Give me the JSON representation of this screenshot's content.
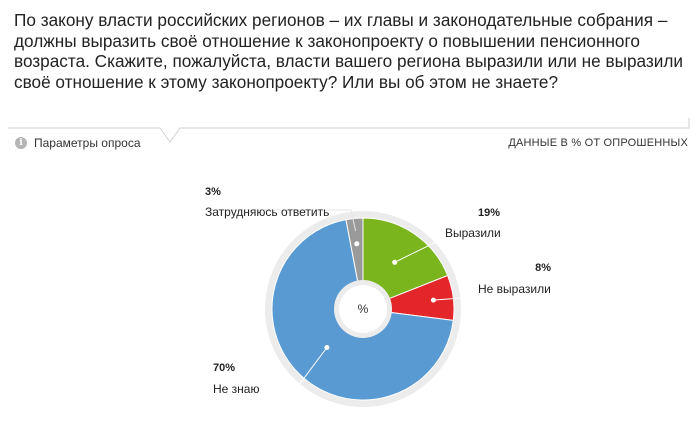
{
  "question": "По закону власти российских регионов – их главы и законодательные собрания – должны выразить своё отношение к законопроекту о повышении пенсионного возраста. Скажите, пожалуйста, власти вашего региона выразили или не выразили своё отношение к этому законопроекту? Или вы об этом не знаете?",
  "params_label": "Параметры опроса",
  "units_label": "ДАННЫЕ В % ОТ ОПРОШЕННЫХ",
  "colors": {
    "green": "#7ab51d",
    "red": "#e2262a",
    "blue": "#5a9ad2",
    "gray": "#9a9a9a",
    "leader": "#c8c8c8",
    "ring": "#ececec"
  },
  "chart_data": {
    "type": "pie",
    "center_label": "%",
    "unit": "%",
    "slices": [
      {
        "label": "Выразили",
        "value": 19,
        "color": "#7ab51d"
      },
      {
        "label": "Не выразили",
        "value": 8,
        "color": "#e2262a"
      },
      {
        "label": "Не знаю",
        "value": 70,
        "color": "#5a9ad2"
      },
      {
        "label": "Затрудняюсь ответить",
        "value": 3,
        "color": "#9a9a9a"
      }
    ]
  }
}
